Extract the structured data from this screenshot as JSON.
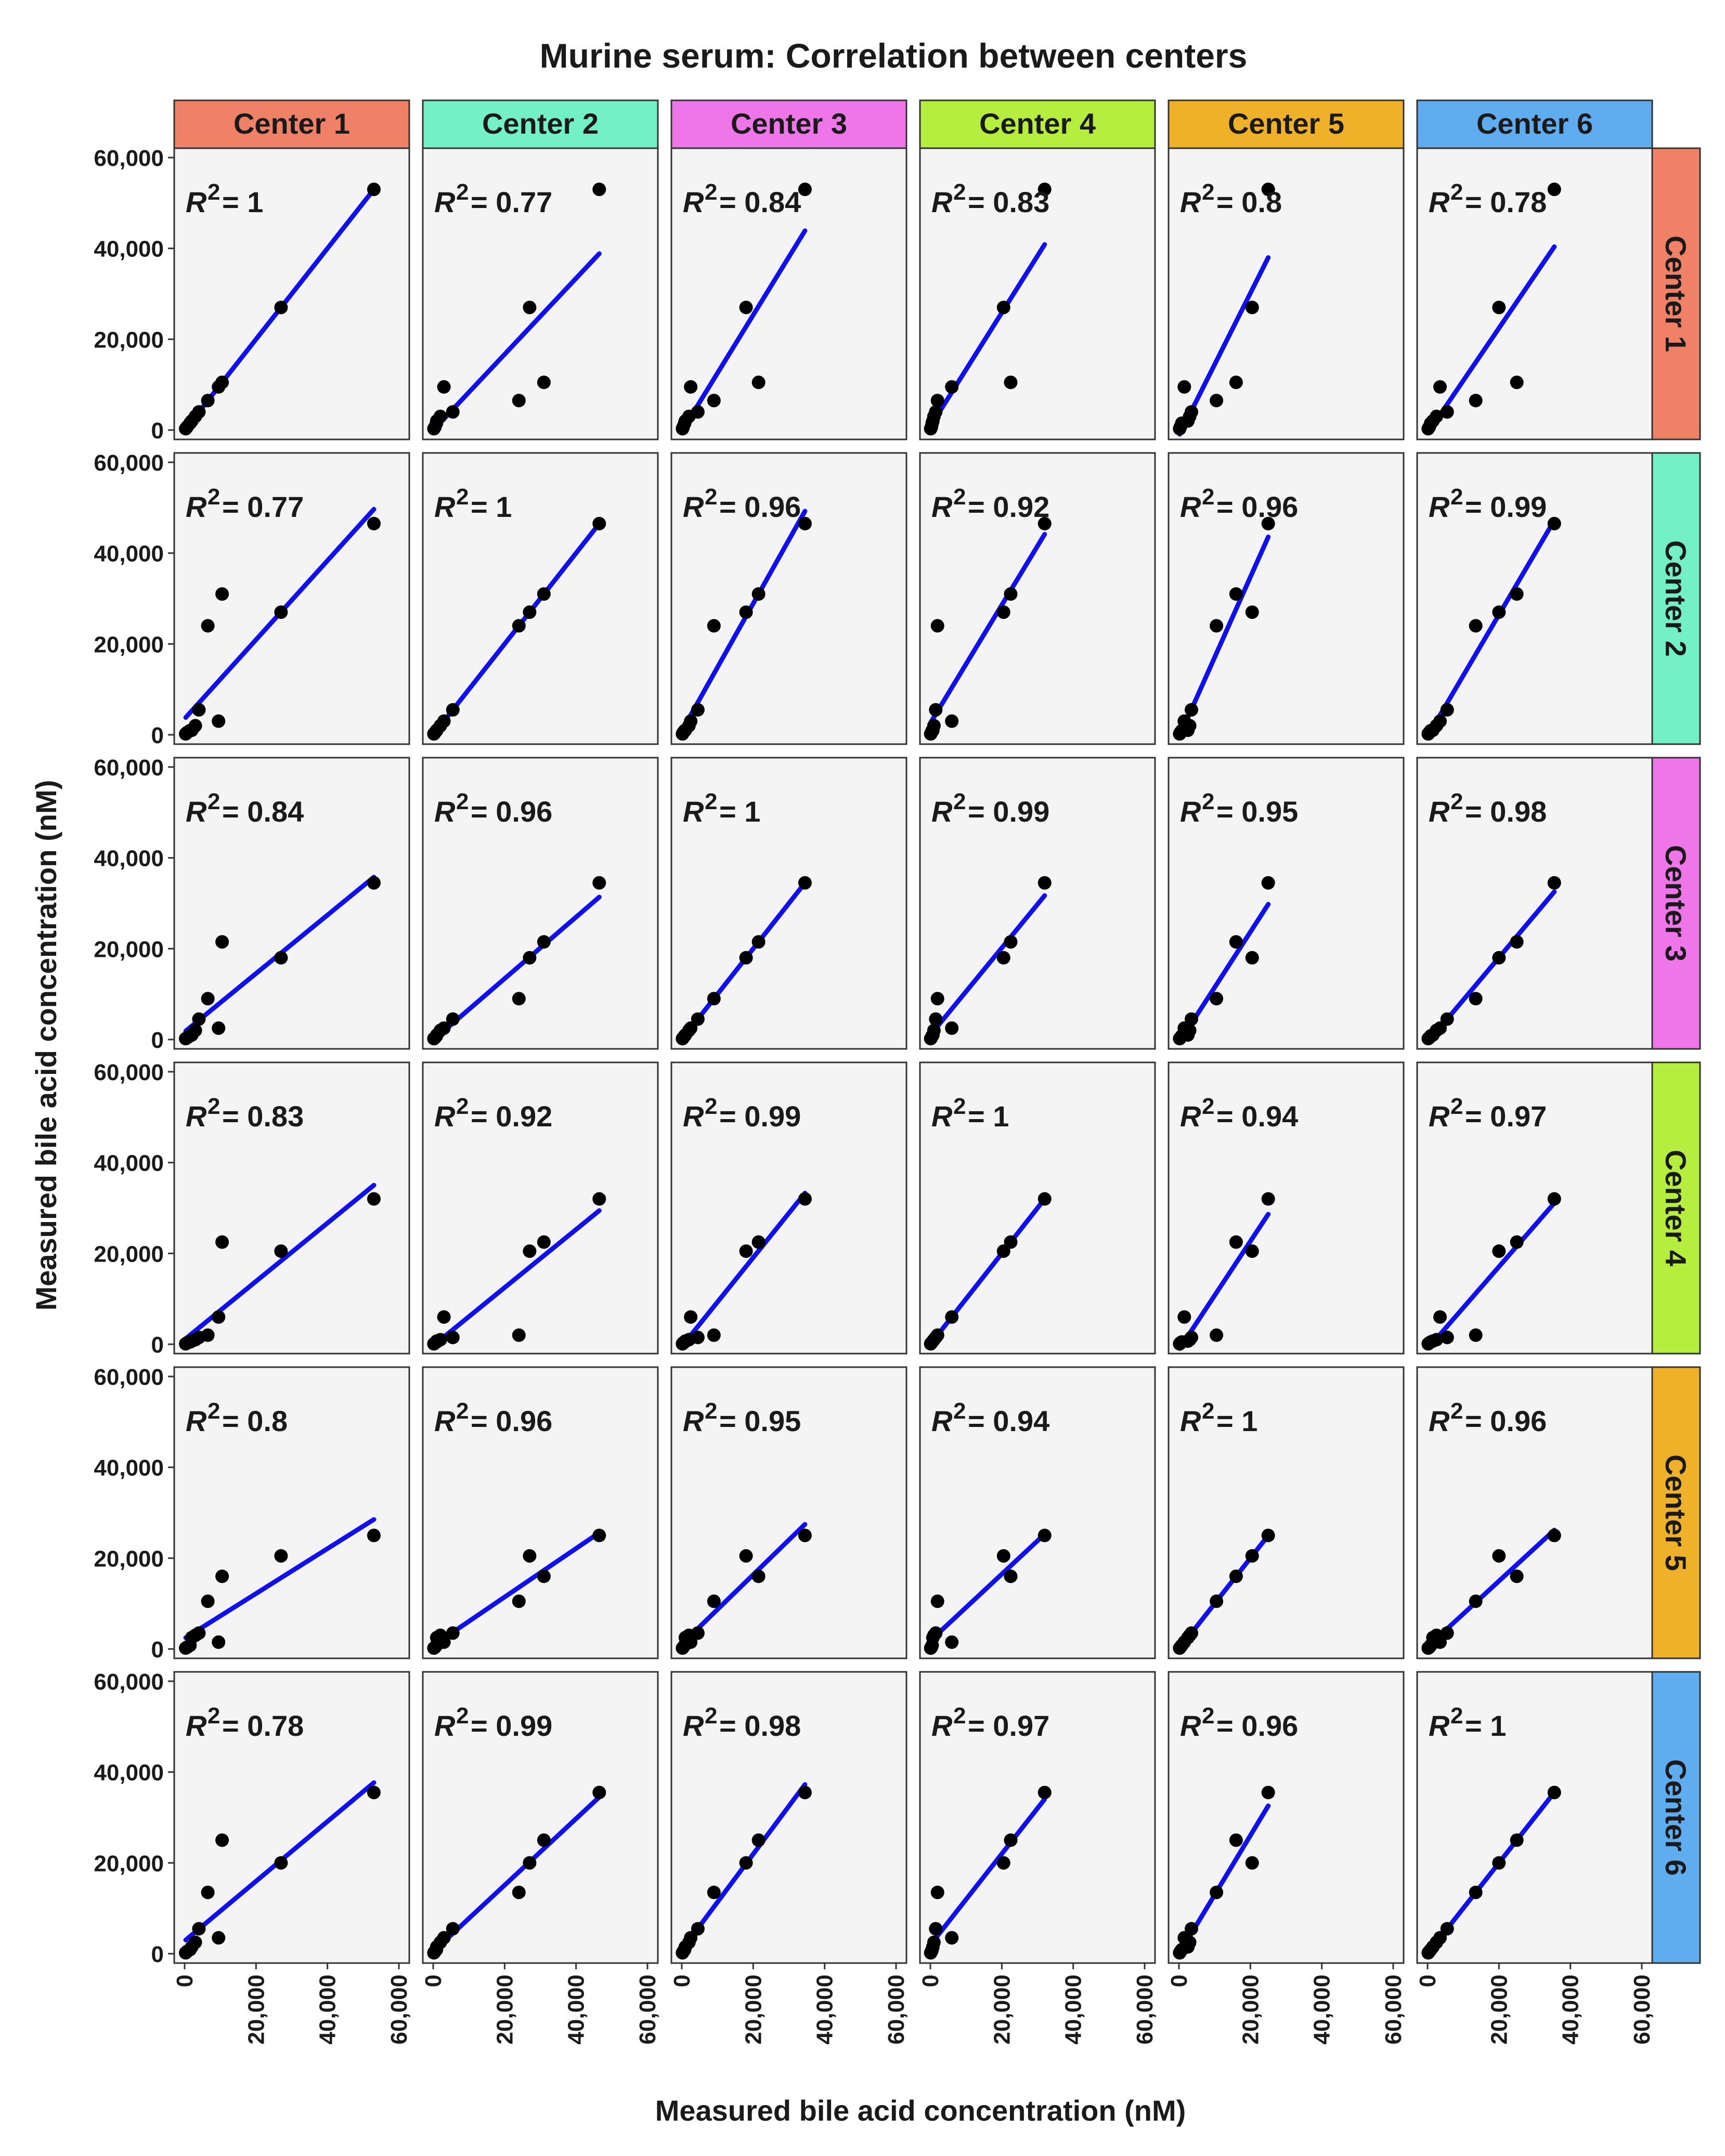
{
  "title": "Murine serum: Correlation between centers",
  "xlabel": "Measured bile acid concentration (nM)",
  "ylabel": "Measured bile acid concentration (nM)",
  "colors": {
    "panel_bg": "#f4f4f4",
    "point": "#000000",
    "fit_line": "#1010ee",
    "strip": [
      "#ef8266",
      "#74f0c6",
      "#ee76e8",
      "#b5ee3e",
      "#f0b12a",
      "#5fadef"
    ]
  },
  "chart_data": {
    "type": "scatter",
    "layout": "6x6 facet grid with linear regression line per panel",
    "xlim": [
      0,
      60000
    ],
    "ylim": [
      0,
      60000
    ],
    "x_ticks": [
      0,
      20000,
      40000,
      60000
    ],
    "y_ticks": [
      0,
      20000,
      40000,
      60000
    ],
    "x_tick_labels": [
      "0",
      "20,000",
      "40,000",
      "60,000"
    ],
    "y_tick_labels": [
      "0",
      "20,000",
      "40,000",
      "60,000"
    ],
    "r2_prefix": "R",
    "r2_sup": "2",
    "columns": [
      "Center 1",
      "Center 2",
      "Center 3",
      "Center 4",
      "Center 5",
      "Center 6"
    ],
    "rows": [
      "Center 1",
      "Center 2",
      "Center 3",
      "Center 4",
      "Center 5",
      "Center 6"
    ],
    "r2": [
      [
        "= 1",
        "= 0.77",
        "= 0.84",
        "= 0.83",
        "= 0.8",
        "= 0.78"
      ],
      [
        "= 0.77",
        "= 1",
        "= 0.96",
        "= 0.92",
        "= 0.96",
        "= 0.99"
      ],
      [
        "= 0.84",
        "= 0.96",
        "= 1",
        "= 0.99",
        "= 0.95",
        "= 0.98"
      ],
      [
        "= 0.83",
        "= 0.92",
        "= 0.99",
        "= 1",
        "= 0.94",
        "= 0.97"
      ],
      [
        "= 0.8",
        "= 0.96",
        "= 0.95",
        "= 0.94",
        "= 1",
        "= 0.96"
      ],
      [
        "= 0.78",
        "= 0.99",
        "= 0.98",
        "= 0.97",
        "= 0.96",
        "= 1"
      ]
    ],
    "values_by_center": [
      [
        53000,
        27000,
        10500,
        9500,
        6500,
        4000,
        3000,
        2000,
        1500,
        700,
        300
      ],
      [
        46500,
        27000,
        31000,
        3000,
        24000,
        5500,
        2000,
        1000,
        900,
        500,
        200
      ],
      [
        34500,
        18000,
        21500,
        2500,
        9000,
        4500,
        2000,
        1000,
        800,
        400,
        200
      ],
      [
        32000,
        20500,
        22500,
        6000,
        2000,
        1500,
        1000,
        700,
        500,
        300,
        100
      ],
      [
        25000,
        20500,
        16000,
        1500,
        10500,
        3500,
        3000,
        2500,
        800,
        400,
        200
      ],
      [
        35500,
        20000,
        25000,
        3500,
        13500,
        5500,
        2500,
        1500,
        900,
        500,
        200
      ]
    ]
  }
}
